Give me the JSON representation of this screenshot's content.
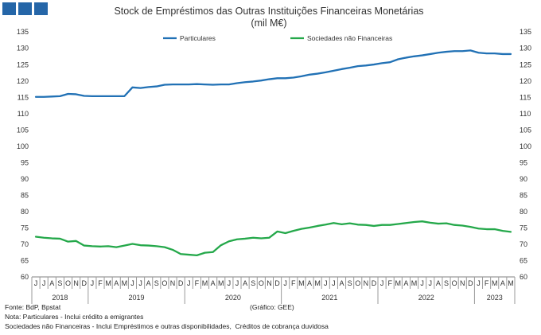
{
  "brand": {
    "logo_icon": "three-squares-logo",
    "color": "#2566a8"
  },
  "chart_data": {
    "type": "line",
    "title": "Stock de Empréstimos das Outras Instituições Financeiras Monetárias",
    "subtitle": "(mil M€)",
    "x": [
      "2018-06",
      "2018-07",
      "2018-08",
      "2018-09",
      "2018-10",
      "2018-11",
      "2018-12",
      "2019-01",
      "2019-02",
      "2019-03",
      "2019-04",
      "2019-05",
      "2019-06",
      "2019-07",
      "2019-08",
      "2019-09",
      "2019-10",
      "2019-11",
      "2019-12",
      "2020-01",
      "2020-02",
      "2020-03",
      "2020-04",
      "2020-05",
      "2020-06",
      "2020-07",
      "2020-08",
      "2020-09",
      "2020-10",
      "2020-11",
      "2020-12",
      "2021-01",
      "2021-02",
      "2021-03",
      "2021-04",
      "2021-05",
      "2021-06",
      "2021-07",
      "2021-08",
      "2021-09",
      "2021-10",
      "2021-11",
      "2021-12",
      "2022-01",
      "2022-02",
      "2022-03",
      "2022-04",
      "2022-05",
      "2022-06",
      "2022-07",
      "2022-08",
      "2022-09",
      "2022-10",
      "2022-11",
      "2022-12",
      "2023-01",
      "2023-02",
      "2023-03",
      "2023-04",
      "2023-05"
    ],
    "x_tick_labels": [
      "J",
      "J",
      "A",
      "S",
      "O",
      "N",
      "D",
      "J",
      "F",
      "M",
      "A",
      "M",
      "J",
      "J",
      "A",
      "S",
      "O",
      "N",
      "D",
      "J",
      "F",
      "M",
      "A",
      "M",
      "J",
      "J",
      "A",
      "S",
      "O",
      "N",
      "D",
      "J",
      "F",
      "M",
      "A",
      "M",
      "J",
      "J",
      "A",
      "S",
      "O",
      "N",
      "D",
      "J",
      "F",
      "M",
      "A",
      "M",
      "J",
      "J",
      "A",
      "S",
      "O",
      "N",
      "D",
      "J",
      "F",
      "M",
      "A",
      "M"
    ],
    "x_group_labels": [
      "2018",
      "2019",
      "2020",
      "2021",
      "2022",
      "2023"
    ],
    "ylim": [
      60,
      135
    ],
    "yticks": [
      60,
      65,
      70,
      75,
      80,
      85,
      90,
      95,
      100,
      105,
      110,
      115,
      120,
      125,
      130,
      135
    ],
    "secondary_y_axis": "right",
    "grid": false,
    "legend": "top",
    "series": [
      {
        "name": "Particulares",
        "color": "#2171b5",
        "values": [
          115.1,
          115.1,
          115.2,
          115.3,
          116.0,
          115.9,
          115.4,
          115.3,
          115.3,
          115.3,
          115.3,
          115.3,
          118.0,
          117.8,
          118.1,
          118.3,
          118.8,
          118.9,
          118.9,
          118.9,
          119.0,
          118.9,
          118.8,
          118.9,
          118.9,
          119.3,
          119.6,
          119.8,
          120.1,
          120.5,
          120.8,
          120.8,
          121.0,
          121.4,
          121.9,
          122.2,
          122.6,
          123.1,
          123.6,
          124.0,
          124.5,
          124.7,
          125.0,
          125.4,
          125.7,
          126.6,
          127.1,
          127.5,
          127.8,
          128.2,
          128.6,
          128.9,
          129.1,
          129.1,
          129.3,
          128.6,
          128.4,
          128.4,
          128.2,
          128.2
        ]
      },
      {
        "name": "Sociedades não Financeiras",
        "color": "#24a84a",
        "values": [
          72.3,
          72.0,
          71.8,
          71.7,
          70.8,
          71.0,
          69.6,
          69.4,
          69.3,
          69.4,
          69.1,
          69.6,
          70.1,
          69.7,
          69.6,
          69.4,
          69.1,
          68.3,
          67.0,
          66.8,
          66.6,
          67.4,
          67.6,
          69.7,
          70.9,
          71.5,
          71.7,
          72.0,
          71.8,
          72.0,
          73.9,
          73.4,
          74.1,
          74.7,
          75.1,
          75.6,
          76.0,
          76.5,
          76.1,
          76.4,
          76.0,
          75.9,
          75.6,
          75.9,
          75.9,
          76.2,
          76.5,
          76.8,
          77.0,
          76.6,
          76.3,
          76.4,
          75.9,
          75.7,
          75.3,
          74.8,
          74.6,
          74.6,
          74.1,
          73.8
        ]
      }
    ]
  },
  "footer": {
    "source": "Fonte: BdP, Bpstat",
    "credit": "(Gráfico: GEE)",
    "note": "Nota: Particulares - Inclui crédito a emigrantes",
    "note_detail": "Sociedades não Financeiras - Inclui Empréstimos e outras disponibilidades,  Créditos de cobrança duvidosa"
  }
}
